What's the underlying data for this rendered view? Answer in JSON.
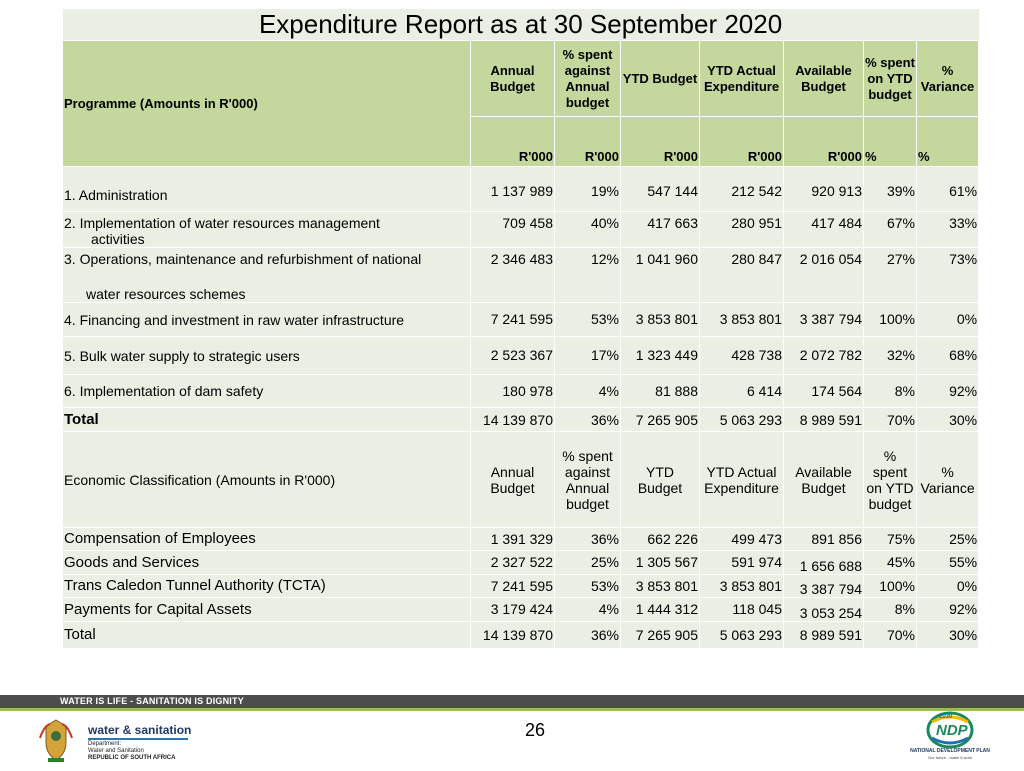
{
  "title": "Expenditure Report as at 30 September 2020",
  "programme_header": {
    "label": "Programme (Amounts in R'000)",
    "columns": [
      "Annual Budget",
      "% spent against Annual budget",
      "YTD Budget",
      "YTD Actual Expenditure",
      "Available Budget",
      "% spent on YTD budget",
      "% Variance"
    ],
    "units": [
      "R'000",
      "R'000",
      "R'000",
      "R'000",
      "R'000",
      "%",
      "%"
    ]
  },
  "programmes": [
    {
      "name": "1.   Administration",
      "cells": [
        "1 137 989",
        "19%",
        "547 144",
        "212 542",
        "920 913",
        "39%",
        "61%"
      ]
    },
    {
      "name": "2.   Implementation of water resources management",
      "name2": "activities",
      "cells": [
        "709 458",
        "40%",
        "417 663",
        "280 951",
        "417 484",
        "67%",
        "33%"
      ]
    },
    {
      "name": "3.  Operations, maintenance and refurbishment of national",
      "name2": "water  resources schemes",
      "cells": [
        "2 346 483",
        "12%",
        "1 041 960",
        "280 847",
        "2 016 054",
        "27%",
        "73%"
      ]
    },
    {
      "name": "4.  Financing and investment in raw water infrastructure",
      "cells": [
        "7 241 595",
        "53%",
        "3 853 801",
        "3 853 801",
        "3 387 794",
        "100%",
        "0%"
      ]
    },
    {
      "name": "5.  Bulk water supply to strategic users",
      "cells": [
        "2 523 367",
        "17%",
        "1 323 449",
        "428 738",
        "2 072 782",
        "32%",
        "68%"
      ]
    },
    {
      "name": "6.  Implementation of dam safety",
      "cells": [
        "180 978",
        "4%",
        "81 888",
        "6 414",
        "174 564",
        "8%",
        "92%"
      ]
    }
  ],
  "programme_total": {
    "name": "Total",
    "cells": [
      "14 139 870",
      "36%",
      "7 265 905",
      "5 063 293",
      "8 989 591",
      "70%",
      "30%"
    ]
  },
  "economic_header": {
    "label": "Economic Classification (Amounts in R'000)",
    "columns": [
      "Annual Budget",
      "% spent against Annual budget",
      "YTD Budget",
      "YTD Actual Expenditure",
      "Available Budget",
      "% spent on YTD budget",
      "% Variance"
    ]
  },
  "economic": [
    {
      "name": "Compensation of Employees",
      "cells": [
        "1 391 329",
        "36%",
        "662 226",
        "499 473",
        "891 856",
        "75%",
        "25%"
      ]
    },
    {
      "name": "Goods and Services",
      "cells": [
        "2 327 522",
        "25%",
        "1 305 567",
        "591 974",
        "1 656 688",
        "45%",
        "55%"
      ]
    },
    {
      "name": "Trans Caledon Tunnel Authority (TCTA)",
      "cells": [
        "7 241 595",
        "53%",
        "3 853 801",
        "3 853 801",
        "3 387 794",
        "100%",
        "0%"
      ]
    },
    {
      "name": "Payments for Capital Assets",
      "cells": [
        "3 179 424",
        "4%",
        "1 444 312",
        "118 045",
        "3 053 254",
        "8%",
        "92%"
      ]
    }
  ],
  "economic_total": {
    "name": "Total",
    "cells": [
      "14 139 870",
      "36%",
      "7 265 905",
      "5 063 293",
      "8 989 591",
      "70%",
      "30%"
    ]
  },
  "footer": {
    "slogan": "WATER IS LIFE - SANITATION IS DIGNITY",
    "page_number": "26",
    "dept_name": "water & sanitation",
    "dept_line1": "Department:",
    "dept_line2": "Water and Sanitation",
    "dept_line3": "REPUBLIC OF SOUTH AFRICA",
    "ndp_year": "2030",
    "ndp_label": "NDP",
    "ndp_caption": "NATIONAL DEVELOPMENT PLAN",
    "ndp_tagline": "Our future - make it work"
  },
  "colors": {
    "header_green": "#c4d79c",
    "row_light": "#eaefe3",
    "footer_dark": "#4d4d4d",
    "footer_green": "#9bbb59"
  }
}
